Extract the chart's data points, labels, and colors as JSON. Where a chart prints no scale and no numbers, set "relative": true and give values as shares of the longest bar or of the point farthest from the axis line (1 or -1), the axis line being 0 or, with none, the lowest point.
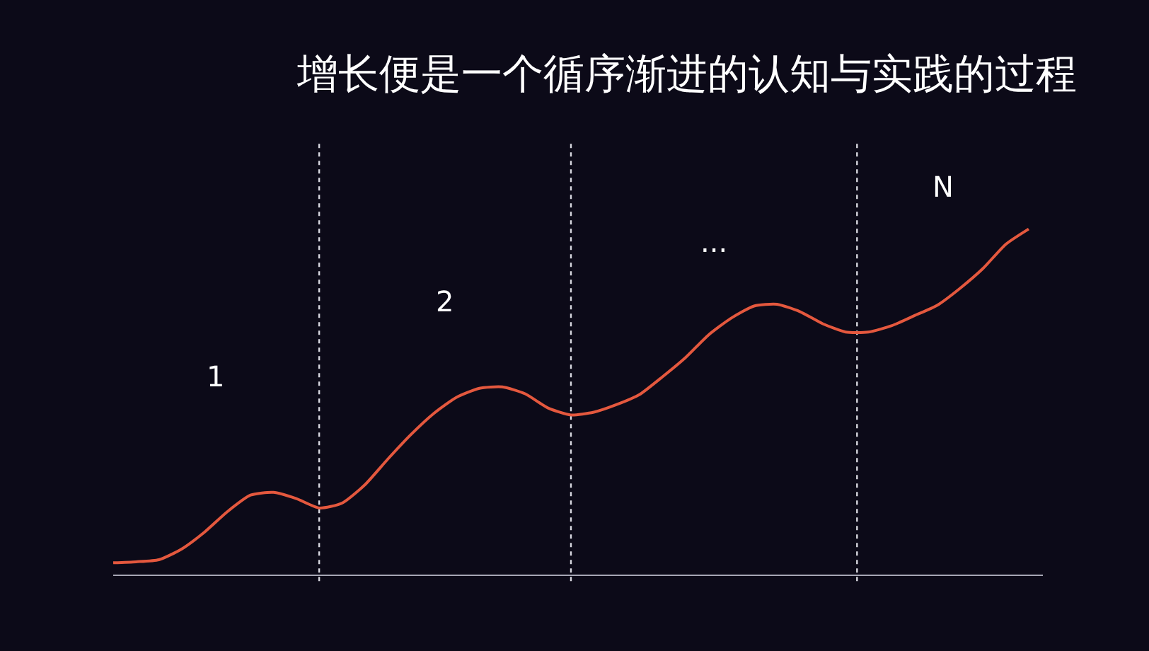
{
  "chart_data": {
    "type": "line",
    "title": "增长便是一个循序渐进的认知与实践的过程",
    "relative": true,
    "categories": [
      null,
      null,
      null,
      null,
      null,
      null,
      null,
      null,
      null,
      null,
      null,
      null,
      null,
      null,
      null,
      null,
      null,
      null,
      null,
      null,
      null,
      null,
      null,
      null,
      null,
      null,
      null,
      null,
      null,
      null,
      null,
      null,
      null,
      null,
      null,
      null,
      null,
      null,
      null,
      null,
      null
    ],
    "series": [
      {
        "color": "#e4583e",
        "values": [
          0.038,
          0.041,
          0.047,
          0.078,
          0.127,
          0.186,
          0.233,
          0.241,
          0.223,
          0.196,
          0.21,
          0.263,
          0.337,
          0.407,
          0.468,
          0.515,
          0.541,
          0.545,
          0.525,
          0.484,
          0.464,
          0.472,
          0.494,
          0.523,
          0.574,
          0.629,
          0.694,
          0.743,
          0.778,
          0.783,
          0.762,
          0.727,
          0.703,
          0.703,
          0.721,
          0.75,
          0.78,
          0.829,
          0.886,
          0.956,
          1
        ]
      }
    ],
    "annotations": [
      "1",
      "2",
      "...",
      "N"
    ],
    "marker": "none",
    "line_style": "solid"
  }
}
